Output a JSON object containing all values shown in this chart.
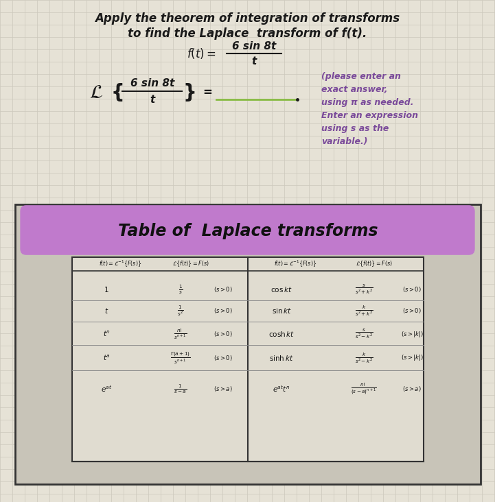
{
  "bg_color": "#e6e2d6",
  "grid_color": "#ccc8bc",
  "text_color": "#1a1a1a",
  "answer_color": "#7a4a9a",
  "table_outer_bg": "#c8c4b8",
  "table_border": "#444444",
  "banner_color": "#c07acc",
  "inner_table_bg": "#e0dcd0",
  "green_line_color": "#88bb44",
  "title_line1": "Apply the theorem of integration of transforms",
  "title_line2": "to find the Laplace  transform of f(t).",
  "table_title": "Table of  Laplace transforms",
  "answer_text": "(please enter an\nexact answer,\nusing π as needed.\nEnter an expression\nusing s as the\nvariable.)",
  "fig_w": 7.21,
  "fig_h": 7.32,
  "dpi": 100
}
